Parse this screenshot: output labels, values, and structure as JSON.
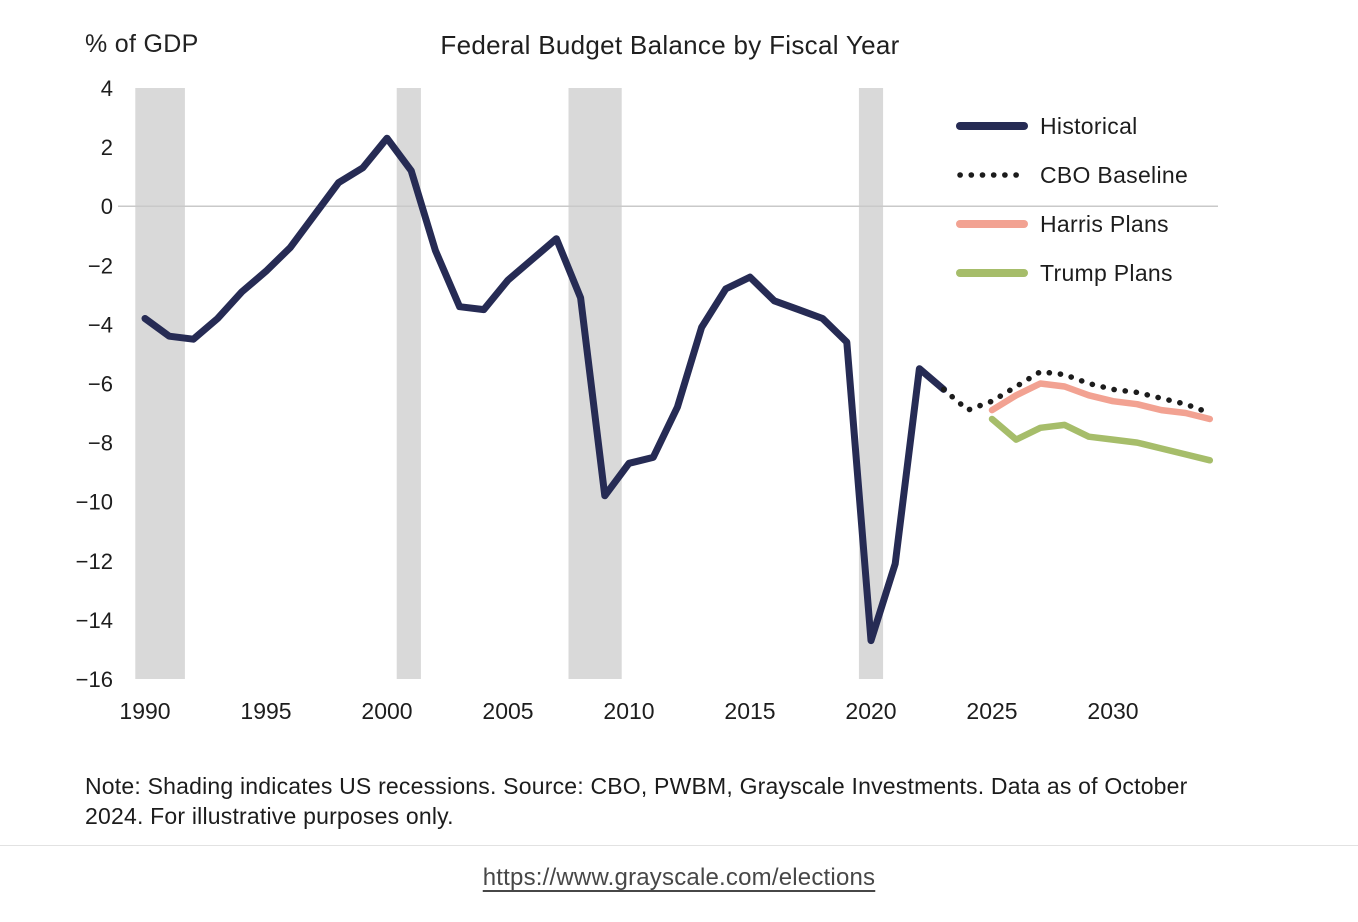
{
  "chart": {
    "title": "Federal Budget Balance by Fiscal Year",
    "y_axis_title": "% of GDP"
  },
  "chart_data": {
    "type": "line",
    "title": "Federal Budget Balance by Fiscal Year",
    "ylabel": "% of GDP",
    "xlabel": "",
    "xlim": [
      1989,
      2035.5
    ],
    "ylim": [
      -16,
      4
    ],
    "grid": false,
    "legend_position": "top-right",
    "y_ticks": [
      4,
      2,
      0,
      -2,
      -4,
      -6,
      -8,
      -10,
      -12,
      -14,
      -16
    ],
    "x_ticks": [
      1990,
      1995,
      2000,
      2005,
      2010,
      2015,
      2020,
      2025,
      2030
    ],
    "recession_bands": [
      [
        1989.6,
        1991.65
      ],
      [
        2000.4,
        2001.4
      ],
      [
        2007.5,
        2009.7
      ],
      [
        2019.5,
        2020.5
      ]
    ],
    "series": [
      {
        "name": "Historical",
        "style": "solid",
        "color": "#262b54",
        "width": 7,
        "x": [
          1990,
          1991,
          1992,
          1993,
          1994,
          1995,
          1996,
          1997,
          1998,
          1999,
          2000,
          2001,
          2002,
          2003,
          2004,
          2005,
          2006,
          2007,
          2008,
          2009,
          2010,
          2011,
          2012,
          2013,
          2014,
          2015,
          2016,
          2017,
          2018,
          2019,
          2020,
          2021,
          2022,
          2023
        ],
        "values": [
          -3.8,
          -4.4,
          -4.5,
          -3.8,
          -2.9,
          -2.2,
          -1.4,
          -0.3,
          0.8,
          1.3,
          2.3,
          1.2,
          -1.5,
          -3.4,
          -3.5,
          -2.5,
          -1.8,
          -1.1,
          -3.1,
          -9.8,
          -8.7,
          -8.5,
          -6.8,
          -4.1,
          -2.8,
          -2.4,
          -3.2,
          -3.5,
          -3.8,
          -4.6,
          -14.7,
          -12.1,
          -5.5,
          -6.2
        ]
      },
      {
        "name": "CBO Baseline",
        "style": "dotted",
        "color": "#1c1c1c",
        "width": 5.5,
        "x": [
          2023,
          2024,
          2025,
          2026,
          2027,
          2028,
          2029,
          2030,
          2031,
          2032,
          2033,
          2034
        ],
        "values": [
          -6.2,
          -6.9,
          -6.6,
          -6.1,
          -5.6,
          -5.7,
          -6.0,
          -6.2,
          -6.3,
          -6.5,
          -6.7,
          -7.0
        ]
      },
      {
        "name": "Harris Plans",
        "style": "solid",
        "color": "#f2a292",
        "width": 6.5,
        "x": [
          2025,
          2026,
          2027,
          2028,
          2029,
          2030,
          2031,
          2032,
          2033,
          2034
        ],
        "values": [
          -6.9,
          -6.4,
          -6.0,
          -6.1,
          -6.4,
          -6.6,
          -6.7,
          -6.9,
          -7.0,
          -7.2
        ]
      },
      {
        "name": "Trump Plans",
        "style": "solid",
        "color": "#a6bd6a",
        "width": 6.5,
        "x": [
          2025,
          2026,
          2027,
          2028,
          2029,
          2030,
          2031,
          2032,
          2033,
          2034
        ],
        "values": [
          -7.2,
          -7.9,
          -7.5,
          -7.4,
          -7.8,
          -7.9,
          -8.0,
          -8.2,
          -8.4,
          -8.6
        ]
      }
    ]
  },
  "note": "Note: Shading indicates US recessions. Source: CBO, PWBM, Grayscale Investments. Data as of October 2024. For illustrative purposes only.",
  "footer": {
    "link_text": "https://www.grayscale.com/elections"
  },
  "colors": {
    "background": "#ffffff",
    "recession_shading": "#d9d9d9",
    "zero_line": "#c9c9c9",
    "historical": "#262b54",
    "cbo_baseline": "#1c1c1c",
    "harris": "#f2a292",
    "trump": "#a6bd6a",
    "link": "#474747",
    "text": "#1d1d1d"
  }
}
